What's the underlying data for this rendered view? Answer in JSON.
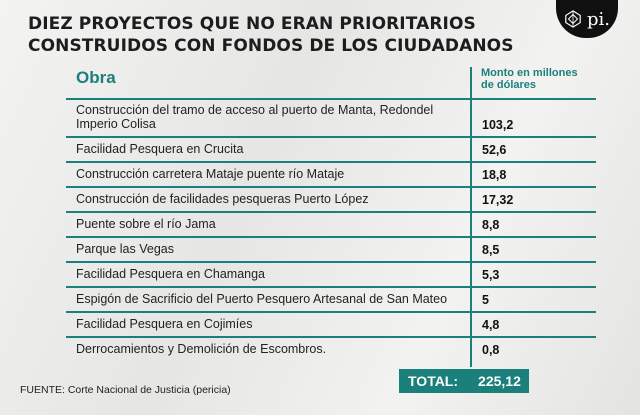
{
  "title": {
    "line1": "DIEZ PROYECTOS QUE NO ERAN PRIORITARIOS",
    "line2": "CONSTRUIDOS CON FONDOS DE LOS CIUDADANOS"
  },
  "logo": {
    "text": "pi.",
    "icon": "geometric-emblem-icon"
  },
  "table": {
    "col_obra": "Obra",
    "col_monto": "Monto en millones de dólares",
    "rows": [
      {
        "name": "Construcción del tramo de acceso al puerto de Manta, Redondel Imperio Colisa",
        "value": "103,2"
      },
      {
        "name": "Facilidad Pesquera en Crucita",
        "value": "52,6"
      },
      {
        "name": "Construcción carretera Mataje puente río Mataje",
        "value": "18,8"
      },
      {
        "name": "Construcción de facilidades pesqueras Puerto López",
        "value": "17,32"
      },
      {
        "name": "Puente sobre el río Jama",
        "value": "8,8"
      },
      {
        "name": "Parque las Vegas",
        "value": "8,5"
      },
      {
        "name": "Facilidad Pesquera en Chamanga",
        "value": "5,3"
      },
      {
        "name": "Espigón de Sacrificio del Puerto Pesquero Artesanal de San Mateo",
        "value": "5"
      },
      {
        "name": "Facilidad Pesquera en Cojimíes",
        "value": "4,8"
      },
      {
        "name": "Derrocamientos y Demolición de Escombros.",
        "value": "0,8"
      }
    ],
    "total_label": "TOTAL:",
    "total_value": "225,12"
  },
  "source": "FUENTE: Corte Nacional de Justicia (pericia)",
  "colors": {
    "accent": "#1b7f7c",
    "background": "#ededeb"
  }
}
